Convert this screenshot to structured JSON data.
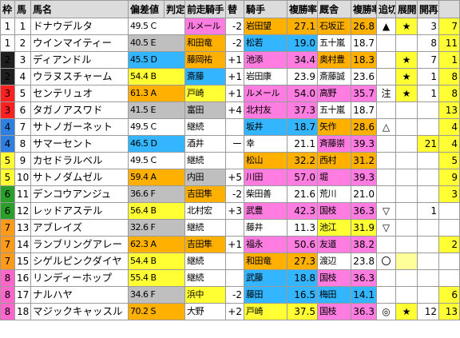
{
  "header": {
    "waku": "枠",
    "uma": "馬",
    "name": "馬名",
    "score": "偏差値",
    "grade": "判定",
    "prev_jockey": "前走騎手",
    "change": "替",
    "jockey": "騎手",
    "jockey_rate": "複勝率",
    "trainer": "厩舎",
    "trainer_rate": "複勝率",
    "tsuikiri": "追切",
    "tenkai": "展開",
    "kaisai": "開再",
    "last": ""
  },
  "colors": {
    "waku": {
      "1": "#ffffff",
      "2": "#1f1f1f",
      "3": "#ff2020",
      "4": "#2f7fe0",
      "5": "#ffff33",
      "6": "#2aa02a",
      "7": "#ff9a1a",
      "8": "#ff66cc"
    },
    "fill": {
      "y": "#ffff33",
      "g": "#bfbfbf",
      "o": "#ffb000",
      "c": "#33b5ff",
      "p": "#ff7ce0",
      "l": "#ffff99",
      "w": "#ffffff"
    }
  },
  "rows": [
    {
      "waku": "1",
      "uma": "1",
      "name": "ドナウデルタ",
      "score": "49.5 C",
      "grade": "",
      "score_bg": "w",
      "prev": "ルメール",
      "prev_bg": "p",
      "sign": "-2",
      "jockey": "岩田望",
      "jockey_bg": "o",
      "jrate": "27.1",
      "trainer": "石坂正",
      "trainer_bg": "o",
      "trate": "26.8",
      "tsuikiri": "▲",
      "tenkai": "★",
      "tenkai_bg": "y",
      "kaisai": "3",
      "kaisai_bg": "w",
      "last": "7",
      "last_bg": "y"
    },
    {
      "waku": "1",
      "uma": "2",
      "name": "ウインマイティー",
      "score": "40.5 E",
      "grade": "",
      "score_bg": "g",
      "prev": "和田竜",
      "prev_bg": "o",
      "sign": "-2",
      "jockey": "松若",
      "jockey_bg": "c",
      "jrate": "19.0",
      "trainer": "五十嵐",
      "trainer_bg": "w",
      "trate": "18.7",
      "tsuikiri": "",
      "tenkai": "",
      "tenkai_bg": "w",
      "kaisai": "8",
      "kaisai_bg": "w",
      "last": "11",
      "last_bg": "y"
    },
    {
      "waku": "2",
      "uma": "3",
      "name": "ディアンドル",
      "score": "45.5 D",
      "grade": "",
      "score_bg": "c",
      "prev": "藤岡祐",
      "prev_bg": "o",
      "sign": "+1",
      "jockey": "池添",
      "jockey_bg": "p",
      "jrate": "34.4",
      "trainer": "奥村豊",
      "trainer_bg": "o",
      "trate": "18.3",
      "tsuikiri": "",
      "tenkai": "★",
      "tenkai_bg": "y",
      "kaisai": "7",
      "kaisai_bg": "w",
      "last": "1",
      "last_bg": "y"
    },
    {
      "waku": "2",
      "uma": "4",
      "name": "ウラヌスチャーム",
      "score": "54.4 B",
      "grade": "",
      "score_bg": "y",
      "prev": "斎藤",
      "prev_bg": "c",
      "sign": "+1",
      "jockey": "岩田康",
      "jockey_bg": "w",
      "jrate": "23.9",
      "trainer": "斎藤誠",
      "trainer_bg": "w",
      "trate": "23.6",
      "tsuikiri": "",
      "tenkai": "★",
      "tenkai_bg": "y",
      "kaisai": "1",
      "kaisai_bg": "w",
      "last": "8",
      "last_bg": "y"
    },
    {
      "waku": "3",
      "uma": "5",
      "name": "センテリュオ",
      "score": "61.3 A",
      "grade": "",
      "score_bg": "o",
      "prev": "戸崎",
      "prev_bg": "y",
      "sign": "+1",
      "jockey": "ルメール",
      "jockey_bg": "p",
      "jrate": "54.0",
      "trainer": "高野",
      "trainer_bg": "p",
      "trate": "35.7",
      "tsuikiri": "注",
      "tenkai": "★",
      "tenkai_bg": "y",
      "kaisai": "1",
      "kaisai_bg": "w",
      "last": "8",
      "last_bg": "y"
    },
    {
      "waku": "3",
      "uma": "6",
      "name": "タガノアスワド",
      "score": "41.5 E",
      "grade": "",
      "score_bg": "g",
      "prev": "富田",
      "prev_bg": "g",
      "sign": "+4",
      "jockey": "北村友",
      "jockey_bg": "p",
      "jrate": "37.3",
      "trainer": "五十嵐",
      "trainer_bg": "w",
      "trate": "18.7",
      "tsuikiri": "",
      "tenkai": "",
      "tenkai_bg": "w",
      "kaisai": "",
      "kaisai_bg": "w",
      "last": "13",
      "last_bg": "y"
    },
    {
      "waku": "4",
      "uma": "7",
      "name": "サトノガーネット",
      "score": "49.5 C",
      "grade": "",
      "score_bg": "w",
      "prev": "継続",
      "prev_bg": "w",
      "sign": "",
      "jockey": "坂井",
      "jockey_bg": "c",
      "jrate": "18.7",
      "trainer": "矢作",
      "trainer_bg": "o",
      "trate": "28.6",
      "tsuikiri": "△",
      "tenkai": "",
      "tenkai_bg": "w",
      "kaisai": "",
      "kaisai_bg": "w",
      "last": "4",
      "last_bg": "y"
    },
    {
      "waku": "4",
      "uma": "8",
      "name": "サマーセント",
      "score": "46.5 D",
      "grade": "",
      "score_bg": "c",
      "prev": "酒井",
      "prev_bg": "w",
      "sign": "ー",
      "jockey": "幸",
      "jockey_bg": "w",
      "jrate": "21.1",
      "trainer": "斉藤崇",
      "trainer_bg": "p",
      "trate": "39.3",
      "tsuikiri": "",
      "tenkai": "",
      "tenkai_bg": "w",
      "kaisai": "21",
      "kaisai_bg": "y",
      "last": "4",
      "last_bg": "y"
    },
    {
      "waku": "5",
      "uma": "9",
      "name": "カセドラルベル",
      "score": "49.5 C",
      "grade": "",
      "score_bg": "w",
      "prev": "継続",
      "prev_bg": "w",
      "sign": "",
      "jockey": "松山",
      "jockey_bg": "o",
      "jrate": "32.2",
      "trainer": "西村",
      "trainer_bg": "o",
      "trate": "31.2",
      "tsuikiri": "",
      "tenkai": "",
      "tenkai_bg": "w",
      "kaisai": "",
      "kaisai_bg": "w",
      "last": "5",
      "last_bg": "y"
    },
    {
      "waku": "5",
      "uma": "10",
      "name": "サトノダムゼル",
      "score": "59.4 A",
      "grade": "",
      "score_bg": "o",
      "prev": "内田",
      "prev_bg": "g",
      "sign": "+5",
      "jockey": "川田",
      "jockey_bg": "p",
      "jrate": "57.0",
      "trainer": "堀",
      "trainer_bg": "p",
      "trate": "39.3",
      "tsuikiri": "",
      "tenkai": "",
      "tenkai_bg": "w",
      "kaisai": "",
      "kaisai_bg": "w",
      "last": "9",
      "last_bg": "y"
    },
    {
      "waku": "6",
      "uma": "11",
      "name": "デンコウアンジュ",
      "score": "36.6 F",
      "grade": "",
      "score_bg": "g",
      "prev": "吉田隼",
      "prev_bg": "o",
      "sign": "-2",
      "jockey": "柴田善",
      "jockey_bg": "w",
      "jrate": "21.6",
      "trainer": "荒川",
      "trainer_bg": "w",
      "trate": "21.0",
      "tsuikiri": "",
      "tenkai": "",
      "tenkai_bg": "w",
      "kaisai": "",
      "kaisai_bg": "w",
      "last": "3",
      "last_bg": "y"
    },
    {
      "waku": "6",
      "uma": "12",
      "name": "レッドアステル",
      "score": "56.4 B",
      "grade": "",
      "score_bg": "y",
      "prev": "北村宏",
      "prev_bg": "w",
      "sign": "+3",
      "jockey": "武豊",
      "jockey_bg": "p",
      "jrate": "42.3",
      "trainer": "国枝",
      "trainer_bg": "p",
      "trate": "36.3",
      "tsuikiri": "▽",
      "tenkai": "",
      "tenkai_bg": "w",
      "kaisai": "1",
      "kaisai_bg": "w",
      "last": "",
      "last_bg": "w"
    },
    {
      "waku": "7",
      "uma": "13",
      "name": "アブレイズ",
      "score": "32.6 F",
      "grade": "",
      "score_bg": "g",
      "prev": "継続",
      "prev_bg": "w",
      "sign": "",
      "jockey": "藤井",
      "jockey_bg": "w",
      "jrate": "11.3",
      "trainer": "池江",
      "trainer_bg": "y",
      "trate": "31.9",
      "tsuikiri": "▽",
      "tenkai": "",
      "tenkai_bg": "w",
      "kaisai": "",
      "kaisai_bg": "w",
      "last": "",
      "last_bg": "w"
    },
    {
      "waku": "7",
      "uma": "14",
      "name": "ランブリングアレー",
      "score": "62.3 A",
      "grade": "",
      "score_bg": "o",
      "prev": "吉田隼",
      "prev_bg": "o",
      "sign": "+1",
      "jockey": "福永",
      "jockey_bg": "p",
      "jrate": "50.6",
      "trainer": "友道",
      "trainer_bg": "p",
      "trate": "38.2",
      "tsuikiri": "",
      "tenkai": "",
      "tenkai_bg": "w",
      "kaisai": "",
      "kaisai_bg": "w",
      "last": "2",
      "last_bg": "y"
    },
    {
      "waku": "7",
      "uma": "15",
      "name": "シゲルピンクダイヤ",
      "score": "54.4 B",
      "grade": "",
      "score_bg": "y",
      "prev": "継続",
      "prev_bg": "w",
      "sign": "",
      "jockey": "和田竜",
      "jockey_bg": "o",
      "jrate": "27.3",
      "trainer": "渡辺",
      "trainer_bg": "w",
      "trate": "23.8",
      "tsuikiri": "〇",
      "tenkai": "",
      "tenkai_bg": "l",
      "kaisai": "",
      "kaisai_bg": "w",
      "last": "",
      "last_bg": "w"
    },
    {
      "waku": "8",
      "uma": "16",
      "name": "リンディーホップ",
      "score": "55.4 B",
      "grade": "",
      "score_bg": "y",
      "prev": "継続",
      "prev_bg": "w",
      "sign": "",
      "jockey": "武藤",
      "jockey_bg": "c",
      "jrate": "18.8",
      "trainer": "国枝",
      "trainer_bg": "p",
      "trate": "36.3",
      "tsuikiri": "",
      "tenkai": "",
      "tenkai_bg": "w",
      "kaisai": "",
      "kaisai_bg": "w",
      "last": "",
      "last_bg": "w"
    },
    {
      "waku": "8",
      "uma": "17",
      "name": "ナルハヤ",
      "score": "34.6 F",
      "grade": "",
      "score_bg": "g",
      "prev": "浜中",
      "prev_bg": "y",
      "sign": "-2",
      "jockey": "藤田",
      "jockey_bg": "c",
      "jrate": "16.5",
      "trainer": "梅田",
      "trainer_bg": "c",
      "trate": "14.1",
      "tsuikiri": "",
      "tenkai": "",
      "tenkai_bg": "w",
      "kaisai": "",
      "kaisai_bg": "w",
      "last": "6",
      "last_bg": "y"
    },
    {
      "waku": "8",
      "uma": "18",
      "name": "マジックキャッスル",
      "score": "70.2 S",
      "grade": "",
      "score_bg": "o",
      "prev": "大野",
      "prev_bg": "w",
      "sign": "+2",
      "jockey": "戸崎",
      "jockey_bg": "y",
      "jrate": "37.5",
      "trainer": "国枝",
      "trainer_bg": "p",
      "trate": "36.3",
      "tsuikiri": "◎",
      "tenkai": "★",
      "tenkai_bg": "y",
      "kaisai": "12",
      "kaisai_bg": "w",
      "last": "13",
      "last_bg": "y"
    }
  ]
}
